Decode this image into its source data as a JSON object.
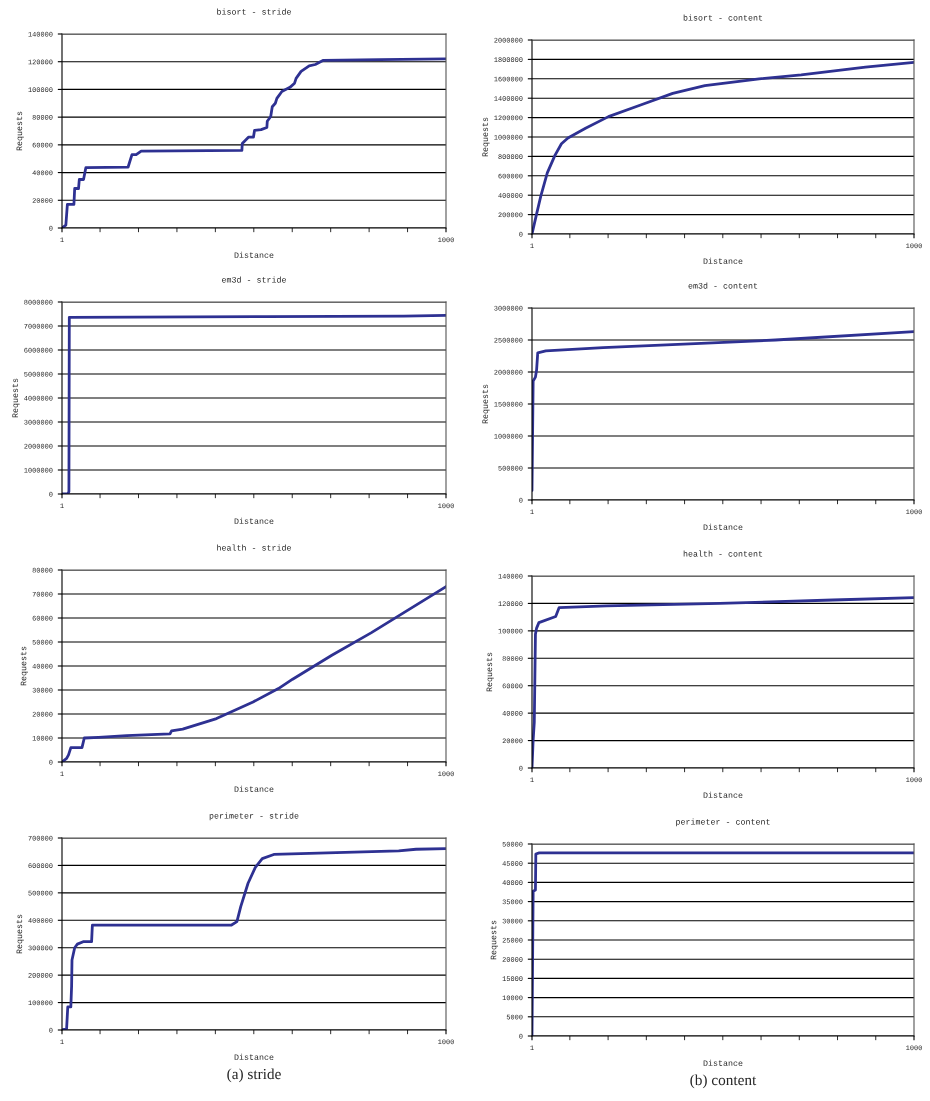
{
  "chart_data": [
    {
      "type": "line",
      "title": "bisort - stride",
      "xlabel": "Distance",
      "ylabel": "Requests",
      "xlim": [
        1,
        1000
      ],
      "xticks": [
        1,
        {
          "value": 100,
          "label": null
        },
        {
          "value": 200,
          "label": null
        },
        {
          "value": 300,
          "label": null
        },
        {
          "value": 400,
          "label": null
        },
        {
          "value": 500,
          "label": null
        },
        {
          "value": 600,
          "label": null
        },
        {
          "value": 700,
          "label": null
        },
        {
          "value": 800,
          "label": null
        },
        {
          "value": 900,
          "label": null
        },
        1000
      ],
      "ylim": [
        0,
        140000
      ],
      "yticks": [
        0,
        20000,
        40000,
        60000,
        80000,
        100000,
        120000,
        140000
      ],
      "grid": "y",
      "series": [
        {
          "color": "#2e3192",
          "x": [
            1,
            11,
            15,
            32,
            34,
            44,
            46,
            57,
            63,
            173,
            183,
            194,
            207,
            469,
            470,
            479,
            486,
            499,
            502,
            519,
            534,
            535,
            544,
            548,
            556,
            560,
            573,
            594,
            606,
            610,
            623,
            644,
            660,
            681,
            827,
            1000
          ],
          "values": [
            0,
            2000,
            17000,
            17000,
            28500,
            28500,
            35000,
            35000,
            43500,
            44000,
            53000,
            53000,
            55500,
            56000,
            61000,
            63500,
            65500,
            65500,
            70500,
            71000,
            72500,
            77000,
            80500,
            87500,
            90000,
            93500,
            98500,
            101500,
            104500,
            108000,
            113000,
            117000,
            118000,
            121000,
            121500,
            122000
          ]
        }
      ]
    },
    {
      "type": "line",
      "title": "bisort - content",
      "xlabel": "Distance",
      "ylabel": "Requests",
      "xlim": [
        1,
        1000
      ],
      "xticks": [
        1,
        {
          "value": 100,
          "label": null
        },
        {
          "value": 200,
          "label": null
        },
        {
          "value": 300,
          "label": null
        },
        {
          "value": 400,
          "label": null
        },
        {
          "value": 500,
          "label": null
        },
        {
          "value": 600,
          "label": null
        },
        {
          "value": 700,
          "label": null
        },
        {
          "value": 800,
          "label": null
        },
        {
          "value": 900,
          "label": null
        },
        1000
      ],
      "ylim": [
        0,
        2000000
      ],
      "yticks": [
        0,
        200000,
        400000,
        600000,
        800000,
        1000000,
        1200000,
        1400000,
        1600000,
        1800000,
        2000000
      ],
      "grid": "y",
      "series": [
        {
          "color": "#2e3192",
          "x": [
            1,
            12,
            24,
            41,
            61,
            78,
            95,
            141,
            201,
            285,
            369,
            453,
            495,
            595,
            705,
            873,
            1000
          ],
          "values": [
            0,
            190000,
            390000,
            630000,
            810000,
            930000,
            990000,
            1090000,
            1210000,
            1330000,
            1450000,
            1530000,
            1550000,
            1600000,
            1640000,
            1720000,
            1770000
          ]
        }
      ]
    },
    {
      "type": "line",
      "title": "em3d - stride",
      "xlabel": "Distance",
      "ylabel": "Requests",
      "xlim": [
        1,
        1000
      ],
      "xticks": [
        1,
        {
          "value": 100,
          "label": null
        },
        {
          "value": 200,
          "label": null
        },
        {
          "value": 300,
          "label": null
        },
        {
          "value": 400,
          "label": null
        },
        {
          "value": 500,
          "label": null
        },
        {
          "value": 600,
          "label": null
        },
        {
          "value": 700,
          "label": null
        },
        {
          "value": 800,
          "label": null
        },
        {
          "value": 900,
          "label": null
        },
        1000
      ],
      "ylim": [
        0,
        8000000
      ],
      "yticks": [
        0,
        1000000,
        2000000,
        3000000,
        4000000,
        5000000,
        6000000,
        7000000,
        8000000
      ],
      "grid": "y",
      "series": [
        {
          "color": "#2e3192",
          "x": [
            1,
            16,
            19,
            20,
            533,
            890,
            1000
          ],
          "values": [
            0,
            0,
            100000,
            7360000,
            7390000,
            7410000,
            7440000
          ]
        }
      ]
    },
    {
      "type": "line",
      "title": "em3d - content",
      "xlabel": "Distance",
      "ylabel": "Requests",
      "xlim": [
        1,
        1000
      ],
      "xticks": [
        1,
        {
          "value": 100,
          "label": null
        },
        {
          "value": 200,
          "label": null
        },
        {
          "value": 300,
          "label": null
        },
        {
          "value": 400,
          "label": null
        },
        {
          "value": 500,
          "label": null
        },
        {
          "value": 600,
          "label": null
        },
        {
          "value": 700,
          "label": null
        },
        {
          "value": 800,
          "label": null
        },
        {
          "value": 900,
          "label": null
        },
        1000
      ],
      "ylim": [
        0,
        3000000
      ],
      "yticks": [
        0,
        500000,
        1000000,
        1500000,
        2000000,
        2500000,
        3000000
      ],
      "grid": "y",
      "series": [
        {
          "color": "#2e3192",
          "x": [
            1,
            4,
            10,
            13,
            16,
            37,
            187,
            488,
            638,
            1000
          ],
          "values": [
            150000,
            1860000,
            1920000,
            2030000,
            2300000,
            2330000,
            2380000,
            2460000,
            2500000,
            2630000
          ]
        }
      ]
    },
    {
      "type": "line",
      "title": "health - stride",
      "xlabel": "Distance",
      "ylabel": "Requests",
      "xlim": [
        1,
        1000
      ],
      "xticks": [
        1,
        {
          "value": 100,
          "label": null
        },
        {
          "value": 200,
          "label": null
        },
        {
          "value": 300,
          "label": null
        },
        {
          "value": 400,
          "label": null
        },
        {
          "value": 500,
          "label": null
        },
        {
          "value": 600,
          "label": null
        },
        {
          "value": 700,
          "label": null
        },
        {
          "value": 800,
          "label": null
        },
        {
          "value": 900,
          "label": null
        },
        1000
      ],
      "ylim": [
        0,
        80000
      ],
      "yticks": [
        0,
        10000,
        20000,
        30000,
        40000,
        50000,
        60000,
        70000,
        80000
      ],
      "grid": "y",
      "series": [
        {
          "color": "#2e3192",
          "x": [
            1,
            13,
            18,
            24,
            53,
            59,
            96,
            169,
            282,
            286,
            315,
            403,
            498,
            564,
            601,
            703,
            805,
            1000
          ],
          "values": [
            0,
            1500,
            3000,
            6000,
            6000,
            10000,
            10300,
            11000,
            11700,
            13000,
            13700,
            18100,
            25000,
            30600,
            34500,
            44500,
            53800,
            73100
          ]
        }
      ]
    },
    {
      "type": "line",
      "title": "health - content",
      "xlabel": "Distance",
      "ylabel": "Requests",
      "xlim": [
        1,
        1000
      ],
      "xticks": [
        1,
        {
          "value": 100,
          "label": null
        },
        {
          "value": 200,
          "label": null
        },
        {
          "value": 300,
          "label": null
        },
        {
          "value": 400,
          "label": null
        },
        {
          "value": 500,
          "label": null
        },
        {
          "value": 600,
          "label": null
        },
        {
          "value": 700,
          "label": null
        },
        {
          "value": 800,
          "label": null
        },
        {
          "value": 900,
          "label": null
        },
        1000
      ],
      "ylim": [
        0,
        140000
      ],
      "yticks": [
        0,
        20000,
        40000,
        60000,
        80000,
        100000,
        120000,
        140000
      ],
      "grid": "y",
      "series": [
        {
          "color": "#2e3192",
          "x": [
            1,
            4,
            7,
            10,
            13,
            19,
            63,
            72,
            196,
            492,
            788,
            1000
          ],
          "values": [
            0,
            20500,
            33400,
            97600,
            102000,
            106000,
            110500,
            117000,
            118200,
            120000,
            122500,
            124200
          ]
        }
      ]
    },
    {
      "type": "line",
      "title": "perimeter - stride",
      "xlabel": "Distance",
      "ylabel": "Requests",
      "xlim": [
        1,
        1000
      ],
      "xticks": [
        1,
        {
          "value": 100,
          "label": null
        },
        {
          "value": 200,
          "label": null
        },
        {
          "value": 300,
          "label": null
        },
        {
          "value": 400,
          "label": null
        },
        {
          "value": 500,
          "label": null
        },
        {
          "value": 600,
          "label": null
        },
        {
          "value": 700,
          "label": null
        },
        {
          "value": 800,
          "label": null
        },
        {
          "value": 900,
          "label": null
        },
        1000
      ],
      "ylim": [
        0,
        700000
      ],
      "yticks": [
        0,
        100000,
        200000,
        300000,
        400000,
        500000,
        600000,
        700000
      ],
      "grid": "y",
      "annotations": [
        "(a) stride"
      ],
      "series": [
        {
          "color": "#2e3192",
          "x": [
            1,
            13,
            16,
            24,
            26,
            27,
            34,
            41,
            56,
            78,
            80,
            441,
            456,
            466,
            485,
            504,
            522,
            552,
            877,
            922,
            1000
          ],
          "values": [
            0,
            5000,
            84000,
            84000,
            160000,
            255000,
            300000,
            313000,
            322000,
            322000,
            382000,
            382000,
            395000,
            450000,
            535000,
            593000,
            625000,
            640000,
            653000,
            659000,
            661000
          ]
        }
      ]
    },
    {
      "type": "line",
      "title": "perimeter - content",
      "xlabel": "Distance",
      "ylabel": "Requests",
      "xlim": [
        1,
        1000
      ],
      "xticks": [
        1,
        {
          "value": 100,
          "label": null
        },
        {
          "value": 200,
          "label": null
        },
        {
          "value": 300,
          "label": null
        },
        {
          "value": 400,
          "label": null
        },
        {
          "value": 500,
          "label": null
        },
        {
          "value": 600,
          "label": null
        },
        {
          "value": 700,
          "label": null
        },
        {
          "value": 800,
          "label": null
        },
        {
          "value": 900,
          "label": null
        },
        1000
      ],
      "ylim": [
        0,
        50000
      ],
      "yticks": [
        0,
        5000,
        10000,
        15000,
        20000,
        25000,
        30000,
        35000,
        40000,
        45000,
        50000
      ],
      "grid": "y",
      "annotations": [
        "(b) content"
      ],
      "series": [
        {
          "color": "#2e3192",
          "x": [
            1,
            4,
            10,
            11,
            20,
            1000
          ],
          "values": [
            0,
            37700,
            38000,
            47400,
            47700,
            47700
          ]
        }
      ]
    }
  ]
}
